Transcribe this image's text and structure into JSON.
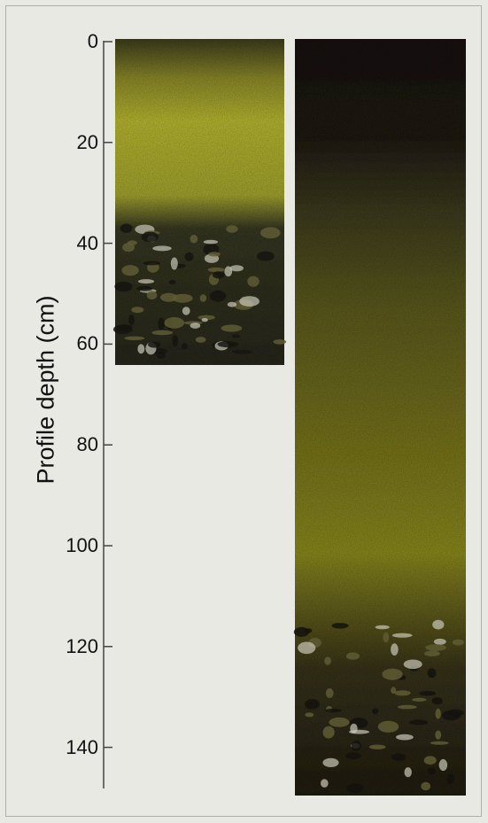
{
  "figure": {
    "axis_title": "Profile depth (cm)",
    "ticks": [
      "0",
      "20",
      "40",
      "60",
      "80",
      "100",
      "120",
      "140"
    ]
  },
  "colors": {
    "profile_dark": "#1c1816",
    "profile_olive": "#6f6a22",
    "profile_yellow": "#a6a62a",
    "profile_gravel": "#4a4630"
  }
}
